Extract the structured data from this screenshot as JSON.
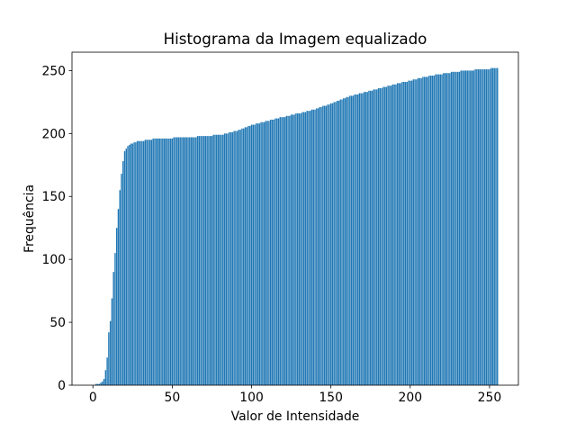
{
  "chart_data": {
    "type": "bar",
    "title": "Histograma da Imagem equalizado",
    "xlabel": "Valor de Intensidade",
    "ylabel": "Frequência",
    "color": "#1f77b4",
    "x": [
      0,
      1,
      2,
      3,
      4,
      5,
      6,
      7,
      8,
      9,
      10,
      11,
      12,
      13,
      14,
      15,
      16,
      17,
      18,
      19,
      20,
      21,
      22,
      23,
      24,
      25,
      26,
      27,
      28,
      29,
      30,
      31,
      32,
      33,
      34,
      35,
      36,
      37,
      38,
      39,
      40,
      41,
      42,
      43,
      44,
      45,
      46,
      47,
      48,
      49,
      50,
      51,
      52,
      53,
      54,
      55,
      56,
      57,
      58,
      59,
      60,
      61,
      62,
      63,
      64,
      65,
      66,
      67,
      68,
      69,
      70,
      71,
      72,
      73,
      74,
      75,
      76,
      77,
      78,
      79,
      80,
      81,
      82,
      83,
      84,
      85,
      86,
      87,
      88,
      89,
      90,
      91,
      92,
      93,
      94,
      95,
      96,
      97,
      98,
      99,
      100,
      101,
      102,
      103,
      104,
      105,
      106,
      107,
      108,
      109,
      110,
      111,
      112,
      113,
      114,
      115,
      116,
      117,
      118,
      119,
      120,
      121,
      122,
      123,
      124,
      125,
      126,
      127,
      128,
      129,
      130,
      131,
      132,
      133,
      134,
      135,
      136,
      137,
      138,
      139,
      140,
      141,
      142,
      143,
      144,
      145,
      146,
      147,
      148,
      149,
      150,
      151,
      152,
      153,
      154,
      155,
      156,
      157,
      158,
      159,
      160,
      161,
      162,
      163,
      164,
      165,
      166,
      167,
      168,
      169,
      170,
      171,
      172,
      173,
      174,
      175,
      176,
      177,
      178,
      179,
      180,
      181,
      182,
      183,
      184,
      185,
      186,
      187,
      188,
      189,
      190,
      191,
      192,
      193,
      194,
      195,
      196,
      197,
      198,
      199,
      200,
      201,
      202,
      203,
      204,
      205,
      206,
      207,
      208,
      209,
      210,
      211,
      212,
      213,
      214,
      215,
      216,
      217,
      218,
      219,
      220,
      221,
      222,
      223,
      224,
      225,
      226,
      227,
      228,
      229,
      230,
      231,
      232,
      233,
      234,
      235,
      236,
      237,
      238,
      239,
      240,
      241,
      242,
      243,
      244,
      245,
      246,
      247,
      248,
      249,
      250,
      251,
      252,
      253,
      254,
      255
    ],
    "values": [
      0,
      0,
      1,
      1,
      1,
      2,
      3,
      5,
      12,
      22,
      42,
      51,
      69,
      90,
      105,
      125,
      140,
      155,
      168,
      178,
      186,
      188,
      190,
      191,
      192,
      192,
      193,
      193,
      194,
      194,
      194,
      194,
      194,
      195,
      195,
      195,
      195,
      195,
      196,
      196,
      196,
      196,
      196,
      196,
      196,
      196,
      196,
      196,
      196,
      196,
      196,
      197,
      197,
      197,
      197,
      197,
      197,
      197,
      197,
      197,
      197,
      197,
      197,
      197,
      197,
      197,
      198,
      198,
      198,
      198,
      198,
      198,
      198,
      198,
      198,
      198,
      199,
      199,
      199,
      199,
      199,
      199,
      199,
      200,
      200,
      200,
      201,
      201,
      201,
      202,
      202,
      202,
      203,
      203,
      204,
      204,
      205,
      205,
      206,
      206,
      207,
      207,
      207,
      208,
      208,
      208,
      209,
      209,
      209,
      210,
      210,
      210,
      211,
      211,
      211,
      212,
      212,
      212,
      213,
      213,
      213,
      213,
      214,
      214,
      214,
      215,
      215,
      215,
      216,
      216,
      216,
      216,
      217,
      217,
      217,
      218,
      218,
      218,
      219,
      219,
      219,
      220,
      220,
      221,
      221,
      222,
      222,
      222,
      223,
      223,
      224,
      224,
      225,
      225,
      226,
      226,
      227,
      227,
      228,
      228,
      229,
      229,
      230,
      230,
      230,
      231,
      231,
      231,
      232,
      232,
      232,
      233,
      233,
      233,
      234,
      234,
      234,
      235,
      235,
      235,
      236,
      236,
      236,
      237,
      237,
      237,
      238,
      238,
      238,
      239,
      239,
      239,
      240,
      240,
      240,
      241,
      241,
      241,
      241,
      242,
      242,
      242,
      243,
      243,
      243,
      244,
      244,
      244,
      245,
      245,
      245,
      245,
      246,
      246,
      246,
      246,
      247,
      247,
      247,
      247,
      247,
      248,
      248,
      248,
      248,
      248,
      249,
      249,
      249,
      249,
      249,
      249,
      250,
      250,
      250,
      250,
      250,
      250,
      250,
      250,
      250,
      251,
      251,
      251,
      251,
      251,
      251,
      251,
      251,
      251,
      251,
      252,
      252,
      252,
      252,
      252
    ],
    "xlim": [
      -13.19,
      268.19
    ],
    "ylim": [
      0,
      264.6
    ],
    "xticks": [
      0,
      50,
      100,
      150,
      200,
      250
    ],
    "yticks": [
      0,
      50,
      100,
      150,
      200,
      250
    ]
  }
}
